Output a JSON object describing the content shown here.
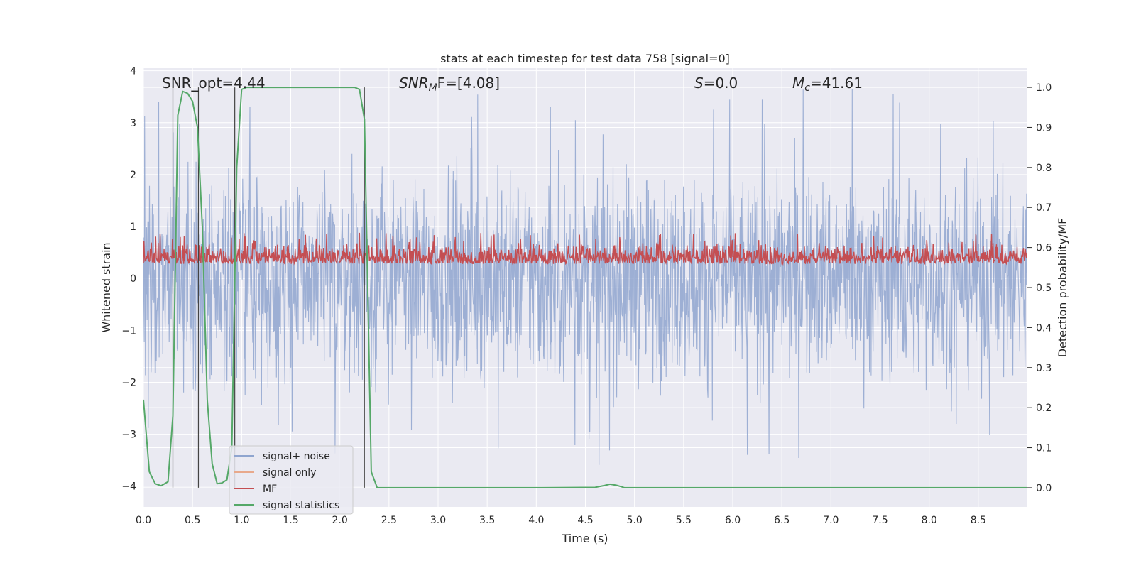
{
  "chart_data": {
    "type": "line",
    "title": "stats at each timestep for test data 758 [signal=0]",
    "xlabel": "Time (s)",
    "ylabel": "Whitened strain",
    "y2label": "Detection probability/MF",
    "xlim": [
      0.0,
      9.0
    ],
    "ylim": [
      -4.4,
      4.05
    ],
    "y2lim": [
      -0.048,
      1.048
    ],
    "xticks": [
      0.0,
      0.5,
      1.0,
      1.5,
      2.0,
      2.5,
      3.0,
      3.5,
      4.0,
      4.5,
      5.0,
      5.5,
      6.0,
      6.5,
      7.0,
      7.5,
      8.0,
      8.5
    ],
    "xtick_labels": [
      "0.0",
      "0.5",
      "1.0",
      "1.5",
      "2.0",
      "2.5",
      "3.0",
      "3.5",
      "4.0",
      "4.5",
      "5.0",
      "5.5",
      "6.0",
      "6.5",
      "7.0",
      "7.5",
      "8.0",
      "8.5"
    ],
    "yticks": [
      -4,
      -3,
      -2,
      -1,
      0,
      1,
      2,
      3,
      4
    ],
    "ytick_labels": [
      "−4",
      "−3",
      "−2",
      "−1",
      "0",
      "1",
      "2",
      "3",
      "4"
    ],
    "y2ticks": [
      0.0,
      0.1,
      0.2,
      0.3,
      0.4,
      0.5,
      0.6,
      0.7,
      0.8,
      0.9,
      1.0
    ],
    "y2tick_labels": [
      "0.0",
      "0.1",
      "0.2",
      "0.3",
      "0.4",
      "0.5",
      "0.6",
      "0.7",
      "0.8",
      "0.9",
      "1.0"
    ],
    "grid": true,
    "legend_position": "lower-left",
    "annotations": {
      "snr_opt": "SNR_opt=4.44",
      "snr_mf": "SNR",
      "snr_mf_sub": "M",
      "snr_mf_rest": "F=[4.08]",
      "s_label": "S",
      "s_value": "=0.0",
      "mc_label": "M",
      "mc_sub": "c",
      "mc_value": "=41.61"
    },
    "series": [
      {
        "name": "signal+ noise",
        "color": "#8fa5cf",
        "axis": "left",
        "description": "dense noise trace roughly between -2.5 and 3.5, spiking to about 3.65 and -4.0"
      },
      {
        "name": "signal only",
        "color": "#e8a98c",
        "axis": "left",
        "values": []
      },
      {
        "name": "MF",
        "color": "#c44e52",
        "axis": "left",
        "range": [
          0.0,
          0.9
        ]
      },
      {
        "name": "signal statistics",
        "color": "#55a868",
        "axis": "right",
        "x": [
          0.0,
          0.06,
          0.12,
          0.18,
          0.25,
          0.3,
          0.35,
          0.4,
          0.45,
          0.5,
          0.55,
          0.6,
          0.65,
          0.7,
          0.75,
          0.8,
          0.85,
          0.9,
          0.95,
          1.0,
          1.05,
          1.1,
          1.5,
          2.0,
          2.15,
          2.2,
          2.25,
          2.32,
          2.38,
          2.5,
          3.0,
          4.0,
          4.6,
          4.7,
          4.75,
          4.82,
          4.9,
          5.0,
          6.0,
          7.0,
          8.0,
          9.0
        ],
        "y": [
          0.22,
          0.04,
          0.01,
          0.005,
          0.015,
          0.18,
          0.93,
          0.99,
          0.985,
          0.965,
          0.9,
          0.65,
          0.22,
          0.06,
          0.01,
          0.012,
          0.02,
          0.1,
          0.8,
          0.995,
          1.0,
          1.0,
          1.0,
          1.0,
          1.0,
          0.995,
          0.92,
          0.04,
          0.0,
          0.0,
          0.0,
          0.0,
          0.001,
          0.006,
          0.009,
          0.006,
          0.0,
          0.0,
          0.0,
          0.0,
          0.0,
          0.0
        ]
      }
    ],
    "vertical_markers_x": [
      0.3,
      0.56,
      0.93,
      2.25
    ]
  }
}
